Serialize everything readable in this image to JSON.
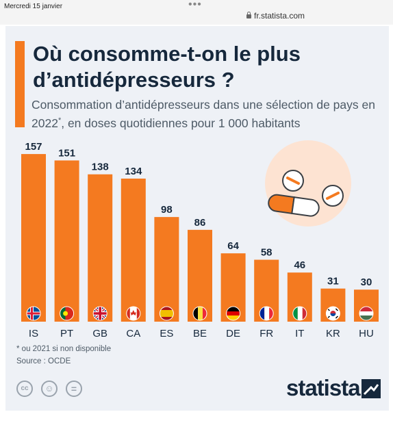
{
  "browser": {
    "date": "Mercredi 15 janvier",
    "url": "fr.statista.com"
  },
  "chart_data": {
    "type": "bar",
    "title": "Où consomme-t-on le plus d’antidépresseurs ?",
    "subtitle_part1": "Consommation d’antidépresseurs dans une sélection de pays en 2022",
    "subtitle_sup": "*",
    "subtitle_part2": ", en doses quotidiennes pour 1 000 habitants",
    "categories": [
      "IS",
      "PT",
      "GB",
      "CA",
      "ES",
      "BE",
      "DE",
      "FR",
      "IT",
      "KR",
      "HU"
    ],
    "values": [
      157,
      151,
      138,
      134,
      98,
      86,
      64,
      58,
      46,
      31,
      30
    ],
    "ylim": [
      0,
      160
    ],
    "bar_color": "#f47a20",
    "grid": false
  },
  "footnote": "* ou 2021 si non disponible",
  "source": "Source : OCDE",
  "brand": "statista",
  "license_icons": [
    "cc-icon",
    "by-icon",
    "nd-icon"
  ],
  "flag_icons": [
    "iceland-flag-icon",
    "portugal-flag-icon",
    "uk-flag-icon",
    "canada-flag-icon",
    "spain-flag-icon",
    "belgium-flag-icon",
    "germany-flag-icon",
    "france-flag-icon",
    "italy-flag-icon",
    "korea-flag-icon",
    "hungary-flag-icon"
  ],
  "colors": {
    "accent": "#f47a20",
    "title": "#16283c",
    "background": "#eef1f6"
  }
}
